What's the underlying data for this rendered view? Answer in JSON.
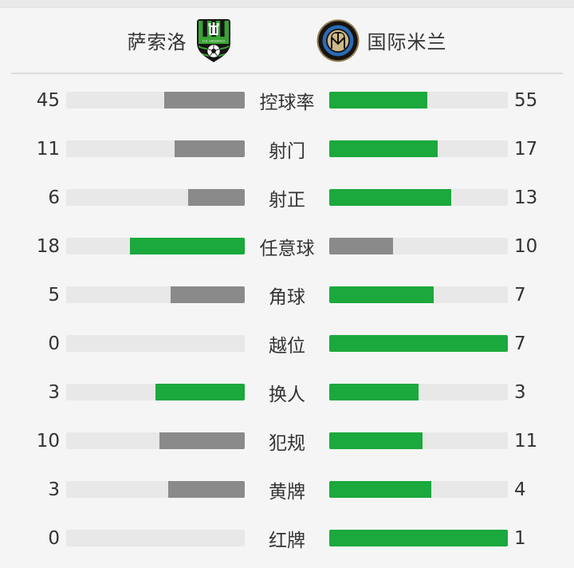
{
  "header": {
    "home": {
      "name": "萨索洛",
      "logo": "sassuolo-crest"
    },
    "away": {
      "name": "国际米兰",
      "logo": "inter-milan-crest"
    }
  },
  "colors": {
    "win_fill": "#1ba83c",
    "lose_fill": "#8a8a8a",
    "track": "#e8e8e8",
    "sassuolo_green": "#3aa335",
    "inter_blue": "#2b6bb5",
    "inter_gold": "#cdb989"
  },
  "chart_data": {
    "type": "bar",
    "title": "",
    "legend": [
      "萨索洛",
      "国际米兰"
    ],
    "categories": [
      "控球率",
      "射门",
      "射正",
      "任意球",
      "角球",
      "越位",
      "换人",
      "犯规",
      "黄牌",
      "红牌"
    ],
    "series": [
      {
        "name": "萨索洛",
        "values": [
          45,
          11,
          6,
          18,
          5,
          0,
          3,
          10,
          3,
          0
        ]
      },
      {
        "name": "国际米兰",
        "values": [
          55,
          17,
          13,
          10,
          7,
          7,
          3,
          11,
          4,
          1
        ]
      }
    ]
  },
  "stats": [
    {
      "label": "控球率",
      "home": 45,
      "away": 55
    },
    {
      "label": "射门",
      "home": 11,
      "away": 17
    },
    {
      "label": "射正",
      "home": 6,
      "away": 13
    },
    {
      "label": "任意球",
      "home": 18,
      "away": 10
    },
    {
      "label": "角球",
      "home": 5,
      "away": 7
    },
    {
      "label": "越位",
      "home": 0,
      "away": 7
    },
    {
      "label": "换人",
      "home": 3,
      "away": 3
    },
    {
      "label": "犯规",
      "home": 10,
      "away": 11
    },
    {
      "label": "黄牌",
      "home": 3,
      "away": 4
    },
    {
      "label": "红牌",
      "home": 0,
      "away": 1
    }
  ]
}
